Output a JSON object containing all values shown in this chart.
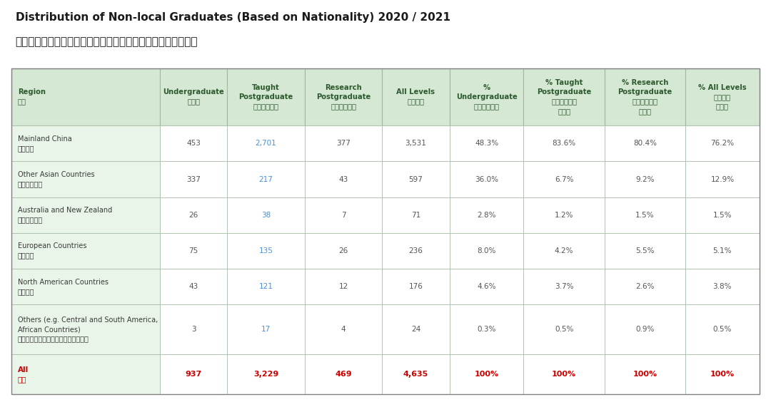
{
  "title_en": "Distribution of Non-local Graduates (Based on Nationality) 2020 / 2021",
  "title_zh": "二零二零／二零二一年度非本地畢業生（以國籍釐定）分佈人數",
  "columns": [
    {
      "en": "Region\n",
      "zh": "地區",
      "align": "left"
    },
    {
      "en": "Undergraduate\n本科生",
      "zh": "",
      "align": "center"
    },
    {
      "en": "Taught\nPostgraduate\n修課式研究生",
      "zh": "",
      "align": "center"
    },
    {
      "en": "Research\nPostgraduate\n研究式研究生",
      "zh": "",
      "align": "center"
    },
    {
      "en": "All Levels\n全部課程",
      "zh": "",
      "align": "center"
    },
    {
      "en": "%\nUndergraduate\n本科生百分比",
      "zh": "",
      "align": "center"
    },
    {
      "en": "% Taught\nPostgraduate\n修課式研究生\n百分比",
      "zh": "",
      "align": "center"
    },
    {
      "en": "% Research\nPostgraduate\n研究式研究生\n百分比",
      "zh": "",
      "align": "center"
    },
    {
      "en": "% All Levels\n全部課程\n百分比",
      "zh": "",
      "align": "center"
    }
  ],
  "col_headers": [
    "Region\n地區",
    "Undergraduate\n本科生",
    "Taught\nPostgraduate\n修課式研究生",
    "Research\nPostgraduate\n研究式研究生",
    "All Levels\n全部課程",
    "%\nUndergraduate\n本科生百分比",
    "% Taught\nPostgraduate\n修課式研究生\n百分比",
    "% Research\nPostgraduate\n研究式研究生\n百分比",
    "% All Levels\n全部課程\n百分比"
  ],
  "rows": [
    {
      "region_en": "Mainland China",
      "region_zh": "中國內地",
      "values": [
        "453",
        "2,701",
        "377",
        "3,531",
        "48.3%",
        "83.6%",
        "80.4%",
        "76.2%"
      ],
      "highlight": false
    },
    {
      "region_en": "Other Asian Countries",
      "region_zh": "其他亞洲國家",
      "values": [
        "337",
        "217",
        "43",
        "597",
        "36.0%",
        "6.7%",
        "9.2%",
        "12.9%"
      ],
      "highlight": false
    },
    {
      "region_en": "Australia and New Zealand",
      "region_zh": "澳洲及新西蘭",
      "values": [
        "26",
        "38",
        "7",
        "71",
        "2.8%",
        "1.2%",
        "1.5%",
        "1.5%"
      ],
      "highlight": false
    },
    {
      "region_en": "European Countries",
      "region_zh": "歐洲國家",
      "values": [
        "75",
        "135",
        "26",
        "236",
        "8.0%",
        "4.2%",
        "5.5%",
        "5.1%"
      ],
      "highlight": false
    },
    {
      "region_en": "North American Countries",
      "region_zh": "北美國家",
      "values": [
        "43",
        "121",
        "12",
        "176",
        "4.6%",
        "3.7%",
        "2.6%",
        "3.8%"
      ],
      "highlight": false
    },
    {
      "region_en": "Others (e.g. Central and South America,\nAfrican Countries)",
      "region_zh": "其他（例如：中美及南美、非洲國家）",
      "values": [
        "3",
        "17",
        "4",
        "24",
        "0.3%",
        "0.5%",
        "0.9%",
        "0.5%"
      ],
      "highlight": false
    },
    {
      "region_en": "All\n總計",
      "region_zh": "",
      "values": [
        "937",
        "3,229",
        "469",
        "4,635",
        "100%",
        "100%",
        "100%",
        "100%"
      ],
      "highlight": true
    }
  ],
  "colors": {
    "header_bg": "#d5e8d4",
    "header_border": "#5c8a5c",
    "odd_row_bg": "#ffffff",
    "even_row_bg": "#ffffff",
    "region_col_bg": "#e8f5e8",
    "border_color": "#a0b8a0",
    "text_color": "#3a3a3a",
    "highlight_text": "#cc0000",
    "header_text": "#2d5a2d",
    "data_text": "#555555",
    "blue_text": "#4a90d9",
    "title_color": "#1a1a1a",
    "table_bg": "#f0f8f0"
  }
}
